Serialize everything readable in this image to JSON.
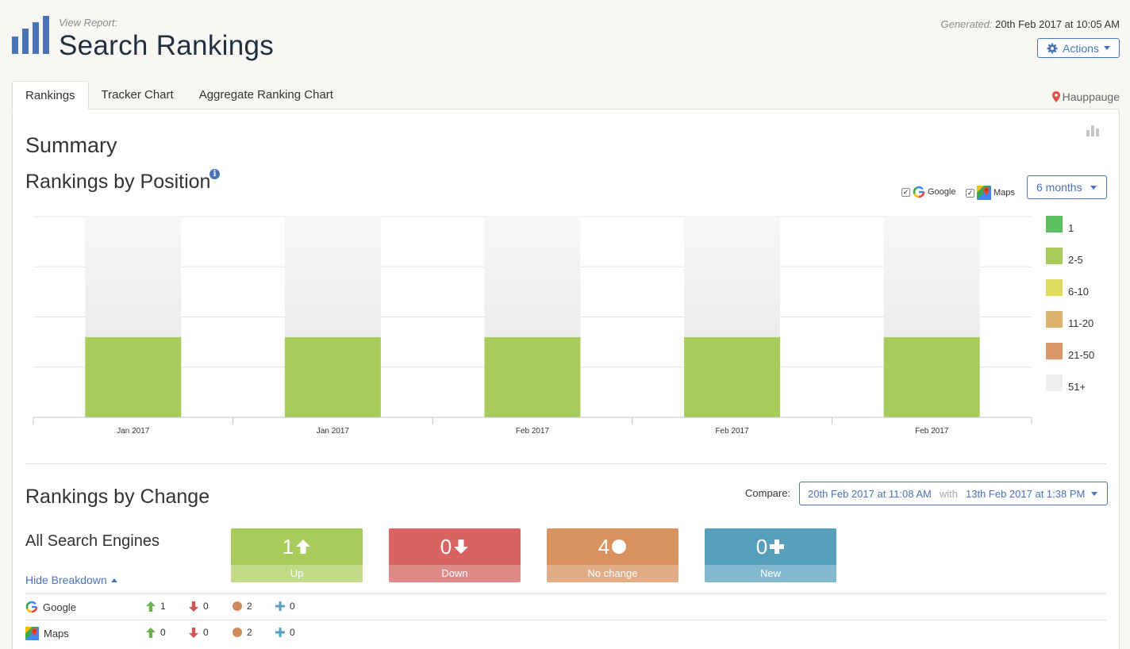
{
  "header": {
    "view_report": "View Report:",
    "title": "Search Rankings",
    "generated_label": "Generated:",
    "generated_value": "20th Feb 2017 at 10:05 AM",
    "actions_label": "Actions"
  },
  "tabs": [
    {
      "label": "Rankings",
      "active": true
    },
    {
      "label": "Tracker Chart",
      "active": false
    },
    {
      "label": "Aggregate Ranking Chart",
      "active": false
    }
  ],
  "location": "Hauppauge",
  "summary": {
    "title": "Summary",
    "position_title": "Rankings by Position",
    "engines": [
      {
        "label": "Google",
        "checked": true
      },
      {
        "label": "Maps",
        "checked": true
      }
    ],
    "period_label": "6 months"
  },
  "chart_data": {
    "type": "bar",
    "stacked": true,
    "categories": [
      "Jan 2017",
      "Jan 2017",
      "Feb 2017",
      "Feb 2017",
      "Feb 2017"
    ],
    "series": [
      {
        "name": "1",
        "color": "#5cbf60",
        "values": [
          0,
          0,
          0,
          0,
          0
        ]
      },
      {
        "name": "2-5",
        "color": "#a8cc5c",
        "values": [
          2,
          2,
          2,
          2,
          2
        ]
      },
      {
        "name": "6-10",
        "color": "#dddc60",
        "values": [
          0,
          0,
          0,
          0,
          0
        ]
      },
      {
        "name": "11-20",
        "color": "#ddb46c",
        "values": [
          0,
          0,
          0,
          0,
          0
        ]
      },
      {
        "name": "21-50",
        "color": "#d9986a",
        "values": [
          0,
          0,
          0,
          0,
          0
        ]
      },
      {
        "name": "51+",
        "color": "#efefef",
        "values": [
          3,
          3,
          3,
          3,
          3
        ]
      }
    ],
    "ylim": [
      0,
      5
    ],
    "grid": true,
    "legend": "right"
  },
  "change": {
    "title": "Rankings by Change",
    "compare_label": "Compare:",
    "compare_from": "20th Feb 2017 at 11:08 AM",
    "compare_with": "with",
    "compare_to": "13th Feb 2017 at 1:38 PM",
    "all_engines": "All Search Engines",
    "hide_breakdown": "Hide Breakdown",
    "stats": [
      {
        "value": "1",
        "label": "Up",
        "top": "#a8cc5c",
        "bottom": "#c1db88",
        "icon": "arrow-up-icon"
      },
      {
        "value": "0",
        "label": "Down",
        "top": "#d96363",
        "bottom": "#e08989",
        "icon": "arrow-down-icon"
      },
      {
        "value": "4",
        "label": "No change",
        "top": "#d9925e",
        "bottom": "#e2ac86",
        "icon": "circle-icon"
      },
      {
        "value": "0",
        "label": "New",
        "top": "#57a0bc",
        "bottom": "#83b9cf",
        "icon": "plus-icon"
      }
    ],
    "breakdown": [
      {
        "engine": "Google",
        "up": "1",
        "down": "0",
        "same": "2",
        "new": "0"
      },
      {
        "engine": "Maps",
        "up": "0",
        "down": "0",
        "same": "2",
        "new": "0"
      }
    ]
  }
}
